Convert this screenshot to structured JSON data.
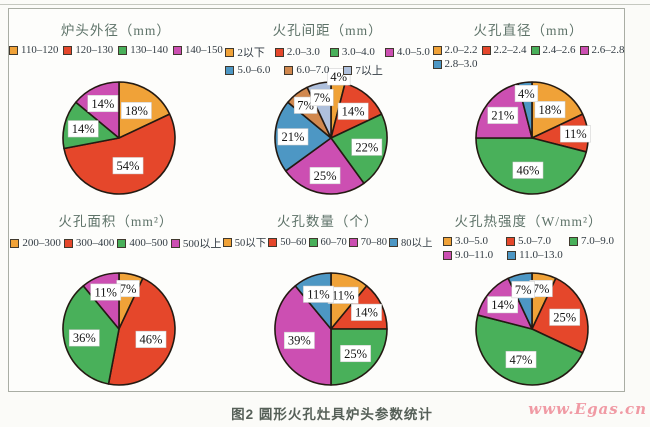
{
  "figure": {
    "caption": "图2  圆形火孔灶具炉头参数统计",
    "watermark": "www.Egas.cn"
  },
  "palette": {
    "orange": "#F0A238",
    "red": "#E5472B",
    "green": "#49B05A",
    "magenta": "#CC4FB2",
    "blue": "#4D97C4",
    "brown_orange": "#D1884E",
    "periwinkle": "#AFC0DC",
    "slice_outline": "#241A12",
    "title_color": "#5d7268",
    "watermark_color": "#f09aa4"
  },
  "chart_data": [
    {
      "type": "pie",
      "title": "炉头外径（mm）",
      "categories": [
        "110–120",
        "120–130",
        "130–140",
        "140–150"
      ],
      "values": [
        18,
        54,
        14,
        14
      ],
      "colors": [
        "#F0A238",
        "#E5472B",
        "#49B05A",
        "#CC4FB2"
      ],
      "start_angle": 0,
      "direction": "clockwise",
      "legend_position": "top",
      "legend_rows": [
        4
      ],
      "legend_gaps": [
        5
      ],
      "label_r": [
        0.58,
        0.52,
        0.66,
        0.68
      ]
    },
    {
      "type": "pie",
      "title": "火孔间距（mm）",
      "categories": [
        "2以下",
        "2.0–3.0",
        "3.0–4.0",
        "4.0–5.0",
        "5.0–6.0",
        "6.0–7.0",
        "7以上"
      ],
      "values": [
        4,
        14,
        22,
        25,
        21,
        7,
        7
      ],
      "colors": [
        "#F0A238",
        "#E5472B",
        "#49B05A",
        "#CC4FB2",
        "#4D97C4",
        "#D1884E",
        "#AFC0DC"
      ],
      "start_angle": 0,
      "direction": "clockwise",
      "legend_position": "top",
      "legend_rows": [
        4,
        3
      ],
      "legend_gaps": [
        10,
        14
      ],
      "label_r": [
        1.1,
        0.62,
        0.66,
        0.68,
        0.68,
        0.74,
        0.74
      ]
    },
    {
      "type": "pie",
      "title": "火孔直径（mm）",
      "categories": [
        "2.0–2.2",
        "2.2–2.4",
        "2.4–2.6",
        "2.6–2.8",
        "2.8–3.0"
      ],
      "values": [
        18,
        11,
        46,
        21,
        4
      ],
      "colors": [
        "#F0A238",
        "#E5472B",
        "#49B05A",
        "#CC4FB2",
        "#4D97C4"
      ],
      "start_angle": 0,
      "direction": "clockwise",
      "legend_position": "top",
      "legend_rows": [
        4,
        1
      ],
      "legend_gaps": [
        4,
        0
      ],
      "label_r": [
        0.6,
        0.78,
        0.58,
        0.66,
        0.8
      ]
    },
    {
      "type": "pie",
      "title": "火孔面积（mm²）",
      "categories": [
        "200–300",
        "300–400",
        "400–500",
        "500以上"
      ],
      "values": [
        7,
        46,
        36,
        11
      ],
      "colors": [
        "#F0A238",
        "#E5472B",
        "#49B05A",
        "#CC4FB2"
      ],
      "start_angle": 0,
      "direction": "clockwise",
      "legend_position": "top",
      "legend_rows": [
        4
      ],
      "legend_gaps": [
        3
      ],
      "label_r": [
        0.74,
        0.6,
        0.64,
        0.7
      ]
    },
    {
      "type": "pie",
      "title": "火孔数量（个）",
      "categories": [
        "50以下",
        "50–60",
        "60–70",
        "70–80",
        "80以上"
      ],
      "values": [
        11,
        14,
        25,
        39,
        11
      ],
      "colors": [
        "#F0A238",
        "#E5472B",
        "#49B05A",
        "#CC4FB2",
        "#4D97C4"
      ],
      "start_angle": 0,
      "direction": "clockwise",
      "legend_position": "top",
      "legend_rows": [
        5
      ],
      "legend_gaps": [
        2
      ],
      "label_r": [
        0.64,
        0.7,
        0.62,
        0.6,
        0.66
      ]
    },
    {
      "type": "pie",
      "title": "火孔热强度（W/mm²）",
      "categories": [
        "3.0–5.0",
        "5.0–7.0",
        "7.0–9.0",
        "9.0–11.0",
        "11.0–13.0"
      ],
      "values": [
        7,
        25,
        47,
        14,
        7
      ],
      "colors": [
        "#F0A238",
        "#E5472B",
        "#49B05A",
        "#CC4FB2",
        "#4D97C4"
      ],
      "start_angle": 0,
      "direction": "clockwise",
      "legend_position": "top",
      "legend_rows": [
        3,
        2
      ],
      "legend_gaps": [
        18,
        14
      ],
      "label_r": [
        0.74,
        0.62,
        0.58,
        0.68,
        0.72
      ]
    }
  ]
}
